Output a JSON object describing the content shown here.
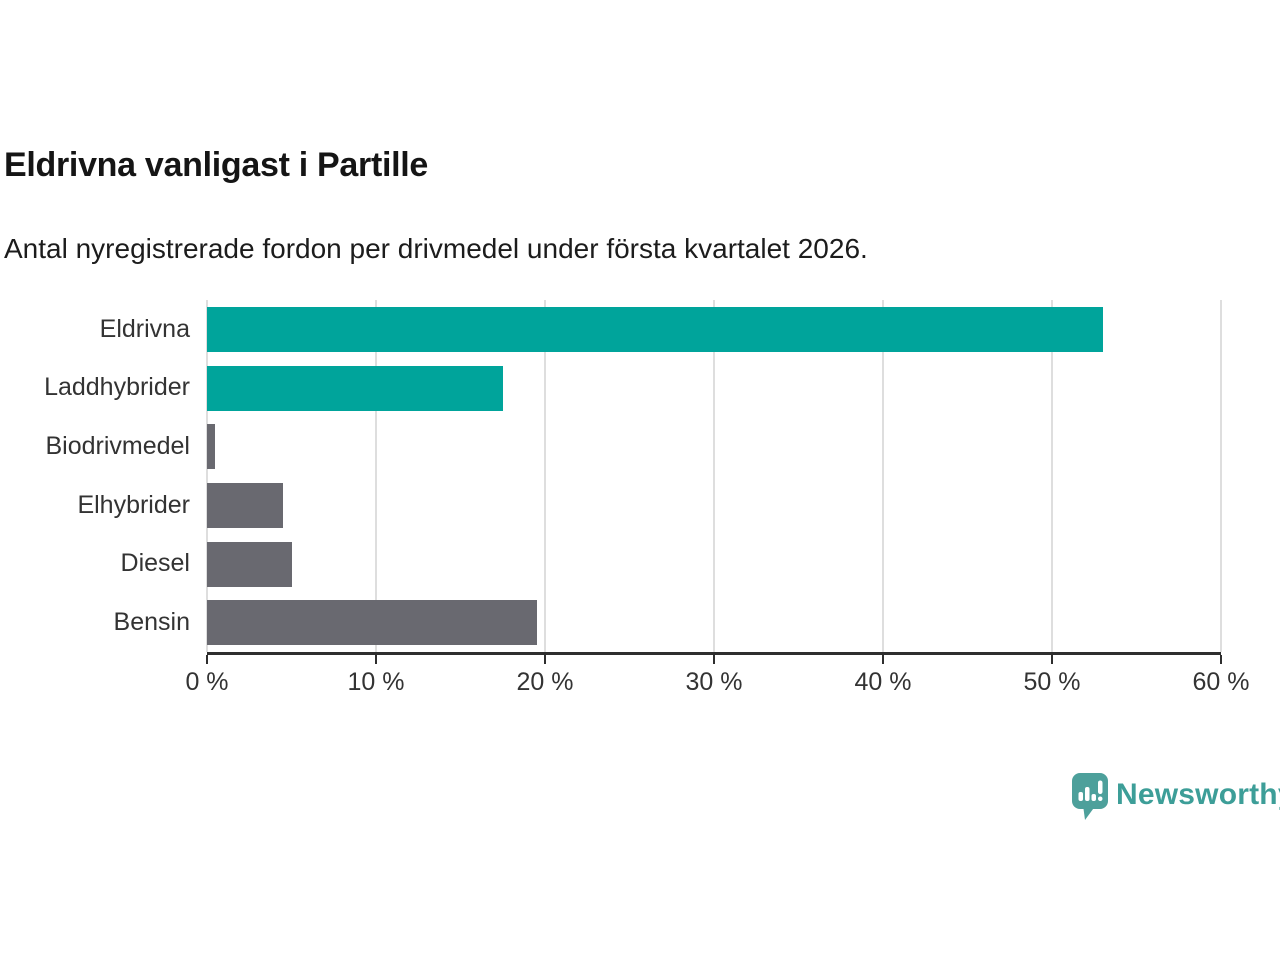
{
  "header": {
    "title": "Eldrivna vanligast i Partille",
    "subtitle": "Antal nyregistrerade fordon per drivmedel under första kvartalet 2026."
  },
  "chart_data": {
    "type": "bar",
    "orientation": "horizontal",
    "title": "Eldrivna vanligast i Partille",
    "subtitle": "Antal nyregistrerade fordon per drivmedel under första kvartalet 2026.",
    "categories": [
      "Eldrivna",
      "Laddhybrider",
      "Biodrivmedel",
      "Elhybrider",
      "Diesel",
      "Bensin"
    ],
    "values": [
      53,
      17.5,
      0.5,
      4.5,
      5,
      19.5
    ],
    "unit": "%",
    "bar_colors": [
      "#00a49b",
      "#00a49b",
      "#696970",
      "#696970",
      "#696970",
      "#696970"
    ],
    "xlim": [
      0,
      60
    ],
    "x_ticks": [
      0,
      10,
      20,
      30,
      40,
      50,
      60
    ],
    "x_tick_labels": [
      "0 %",
      "10 %",
      "20 %",
      "30 %",
      "40 %",
      "50 %",
      "60 %"
    ],
    "grid": "vertical-gridlines-on",
    "legend": "none"
  },
  "colors": {
    "accent_teal": "#00a49b",
    "neutral_gray": "#696970",
    "gridline": "#dedede",
    "axis_line": "#2e2e2e",
    "text": "#333333",
    "logo_teal": "#3d9e98",
    "logo_icon_teal": "#4da09b"
  },
  "footer": {
    "brand": "Newsworthy"
  }
}
